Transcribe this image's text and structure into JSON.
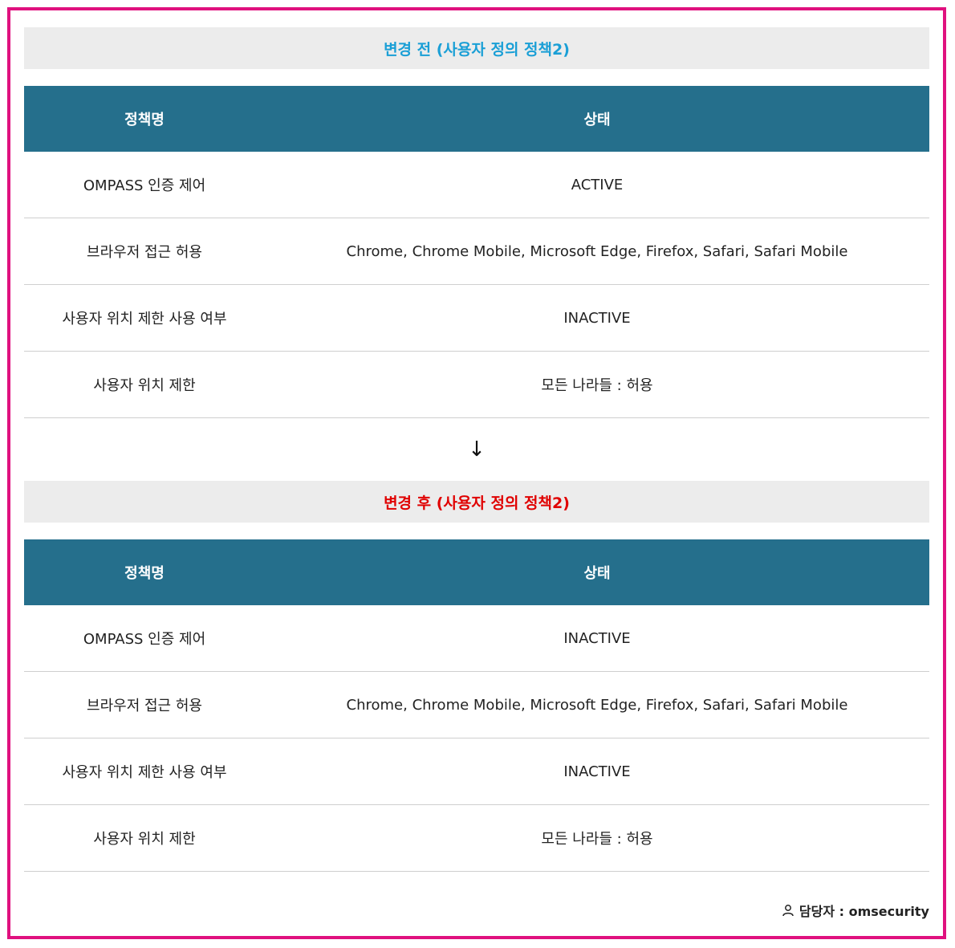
{
  "before": {
    "title": "변경 전 (사용자 정의 정책2)",
    "title_color": "#1a9fd6",
    "header": {
      "col1": "정책명",
      "col2": "상태"
    },
    "rows": [
      {
        "name": "OMPASS 인증 제어",
        "value": "ACTIVE"
      },
      {
        "name": "브라우저 접근 허용",
        "value": "Chrome, Chrome Mobile, Microsoft Edge, Firefox, Safari, Safari Mobile"
      },
      {
        "name": "사용자 위치 제한 사용 여부",
        "value": "INACTIVE"
      },
      {
        "name": "사용자 위치 제한",
        "value": "모든 나라들 : 허용"
      }
    ]
  },
  "arrow": "↓",
  "after": {
    "title": "변경 후 (사용자 정의 정책2)",
    "title_color": "#e00000",
    "header": {
      "col1": "정책명",
      "col2": "상태"
    },
    "rows": [
      {
        "name": "OMPASS 인증 제어",
        "value": "INACTIVE"
      },
      {
        "name": "브라우저 접근 허용",
        "value": "Chrome, Chrome Mobile, Microsoft Edge, Firefox, Safari, Safari Mobile"
      },
      {
        "name": "사용자 위치 제한 사용 여부",
        "value": "INACTIVE"
      },
      {
        "name": "사용자 위치 제한",
        "value": "모든 나라들 : 허용"
      }
    ]
  },
  "footer": {
    "icon": "person-icon",
    "label": "담당자 : omsecurity"
  },
  "colors": {
    "border": "#e0117f",
    "header_bg": "#256f8c",
    "title_bg": "#ececec"
  }
}
